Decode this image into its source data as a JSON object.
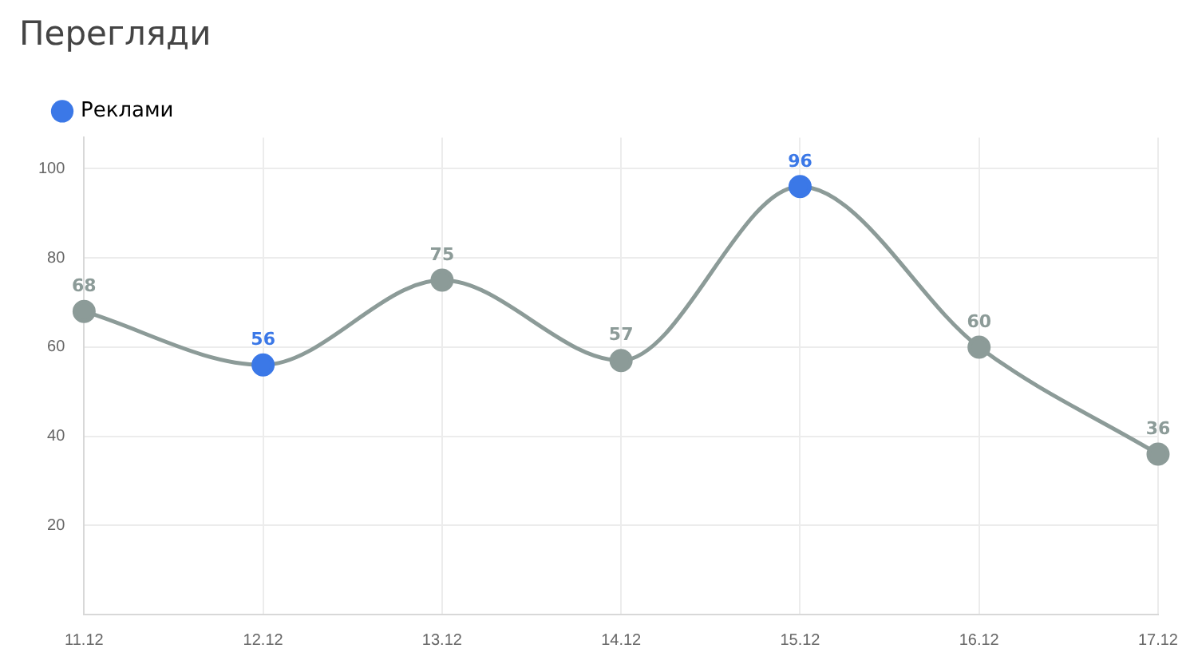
{
  "chart_data": {
    "type": "line",
    "title": "Перегляди",
    "categories": [
      "11.12",
      "12.12",
      "13.12",
      "14.12",
      "15.12",
      "16.12",
      "17.12"
    ],
    "series": [
      {
        "name": "Реклами",
        "color": "#8c9b98",
        "values": [
          68,
          56,
          75,
          57,
          96,
          60,
          36
        ],
        "colors": [
          "#8c9b98",
          "#3b78e7",
          "#8c9b98",
          "#8c9b98",
          "#3b78e7",
          "#8c9b98",
          "#8c9b98"
        ]
      }
    ],
    "ylim": [
      0,
      107
    ],
    "yticks": [
      20,
      40,
      60,
      80,
      100
    ],
    "grid": true,
    "legend": "top left",
    "marker": "circle",
    "data_labels": true
  }
}
